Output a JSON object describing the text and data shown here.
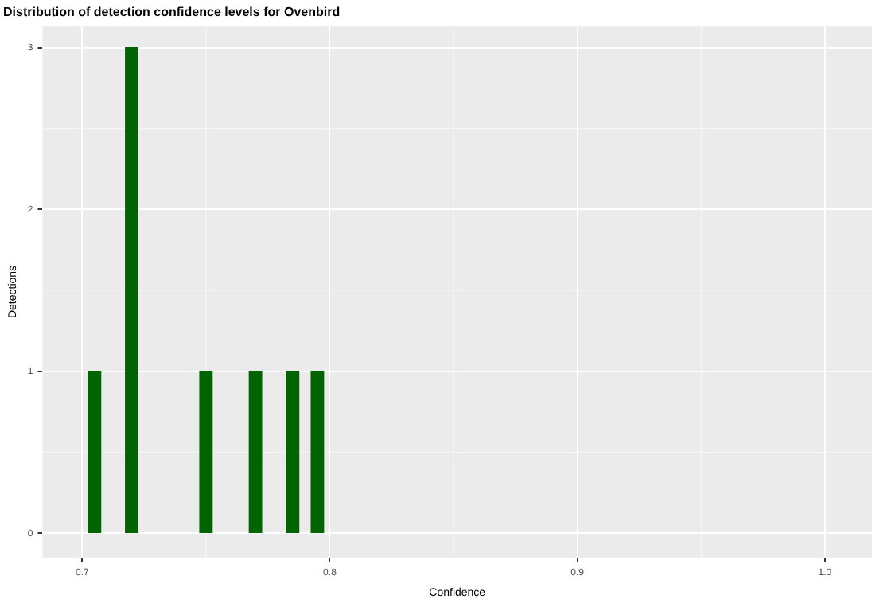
{
  "chart_data": {
    "type": "histogram",
    "title": "Distribution of detection confidence levels for Ovenbird",
    "xlabel": "Confidence",
    "ylabel": "Detections",
    "bins": [
      0.7025,
      0.7075,
      0.7125,
      0.7175,
      0.7225,
      0.7275,
      0.7325,
      0.7375,
      0.7425,
      0.7475,
      0.7525,
      0.7575,
      0.7625,
      0.7675,
      0.7725,
      0.7775,
      0.7825,
      0.7875,
      0.7925,
      0.7975
    ],
    "values": [
      1,
      0,
      0,
      3,
      0,
      0,
      0,
      0,
      0,
      1,
      0,
      0,
      0,
      1,
      0,
      0,
      1,
      0,
      1
    ],
    "color": "#006400",
    "xlim": [
      0.684,
      1.019
    ],
    "xticks": [
      {
        "value": 0.7,
        "label": "0.7"
      },
      {
        "value": 0.8,
        "label": "0.8"
      },
      {
        "value": 0.9,
        "label": "0.9"
      },
      {
        "value": 1.0,
        "label": "1.0"
      }
    ],
    "ylim": [
      -0.15,
      3.13
    ],
    "yticks": [
      0,
      1,
      2,
      3
    ],
    "grid": true
  }
}
